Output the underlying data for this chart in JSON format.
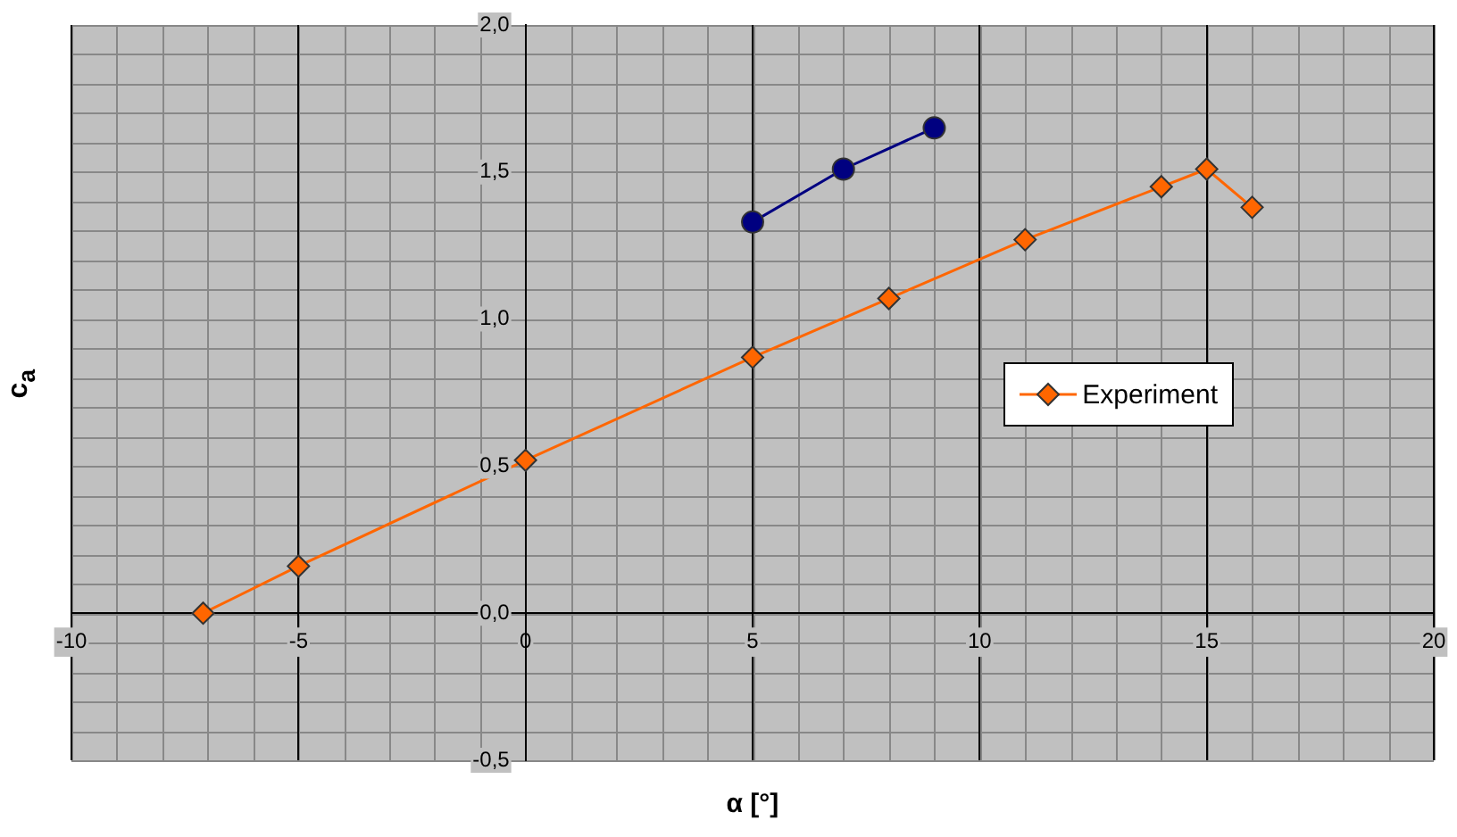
{
  "chart_data": {
    "type": "line",
    "xlabel": "α [°]",
    "ylabel": "c$_{a}$",
    "xlim": [
      -10,
      20
    ],
    "xticks": [
      -10,
      -5,
      0,
      5,
      10,
      15,
      20
    ],
    "ylim": [
      -0.5,
      2.0
    ],
    "yticks": [
      {
        "value": -0.5,
        "label": "-0,5"
      },
      {
        "value": 0,
        "label": "0,0"
      },
      {
        "value": 0.5,
        "label": "0,5"
      },
      {
        "value": 1.0,
        "label": "1,0"
      },
      {
        "value": 1.5,
        "label": "1,5"
      },
      {
        "value": 2.0,
        "label": "2,0"
      }
    ],
    "grid": true,
    "legend": "right",
    "line_style": "solid",
    "series": [
      {
        "color": "#000080",
        "marker": "circle",
        "x": [
          5,
          7,
          9
        ],
        "values": [
          1.33,
          1.51,
          1.65
        ]
      },
      {
        "name": "Experiment",
        "color": "#ff6600",
        "marker": "diamond",
        "x": [
          -7.1,
          -5,
          0,
          5,
          8,
          11,
          14,
          15,
          16
        ],
        "values": [
          0.0,
          0.16,
          0.52,
          0.87,
          1.07,
          1.27,
          1.45,
          1.51,
          1.38
        ]
      }
    ]
  }
}
